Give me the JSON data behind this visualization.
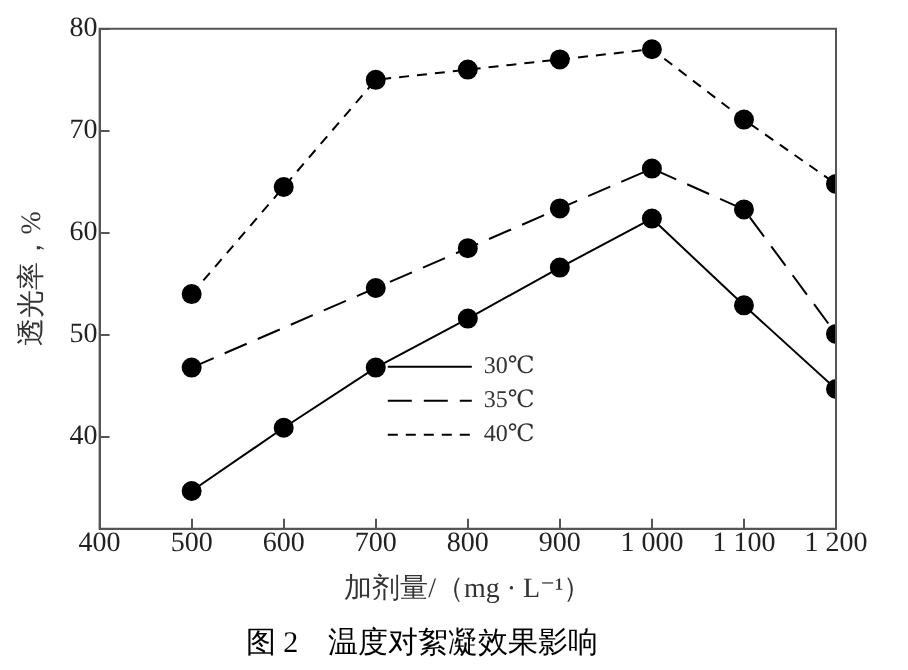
{
  "chart_data": {
    "type": "line",
    "title": "图 2　温度对絮凝效果影响",
    "xlabel": "加剂量/（mg · L⁻¹）",
    "ylabel": "透光率，%",
    "xlim": [
      400,
      1200
    ],
    "xticks": [
      400,
      500,
      600,
      700,
      800,
      900,
      {
        "value": 1000,
        "label": "1 000"
      },
      {
        "value": 1100,
        "label": "1 100"
      },
      {
        "value": 1200,
        "label": "1 200"
      }
    ],
    "ylim": [
      31,
      80
    ],
    "yticks": [
      40,
      50,
      60,
      70,
      80
    ],
    "grid": false,
    "legend": "bottom",
    "marker": "circle",
    "series": [
      {
        "name": "30℃",
        "color": "#000000",
        "line_style": "solid",
        "x": [
          500,
          600,
          700,
          800,
          900,
          1000,
          1100,
          1200
        ],
        "values": [
          34.7,
          40.9,
          46.8,
          51.6,
          56.6,
          61.4,
          52.9,
          44.7
        ]
      },
      {
        "name": "35℃",
        "color": "#000000",
        "line_style": "longdash",
        "x": [
          500,
          700,
          800,
          900,
          1000,
          1100,
          1200
        ],
        "values": [
          46.8,
          54.6,
          58.5,
          62.4,
          66.3,
          62.3,
          50.1
        ]
      },
      {
        "name": "40℃",
        "color": "#000000",
        "line_style": "dashed",
        "x": [
          500,
          600,
          700,
          800,
          900,
          1000,
          1100,
          1200
        ],
        "values": [
          54,
          64.5,
          75,
          76,
          77,
          78,
          71.1,
          64.8
        ]
      }
    ]
  }
}
